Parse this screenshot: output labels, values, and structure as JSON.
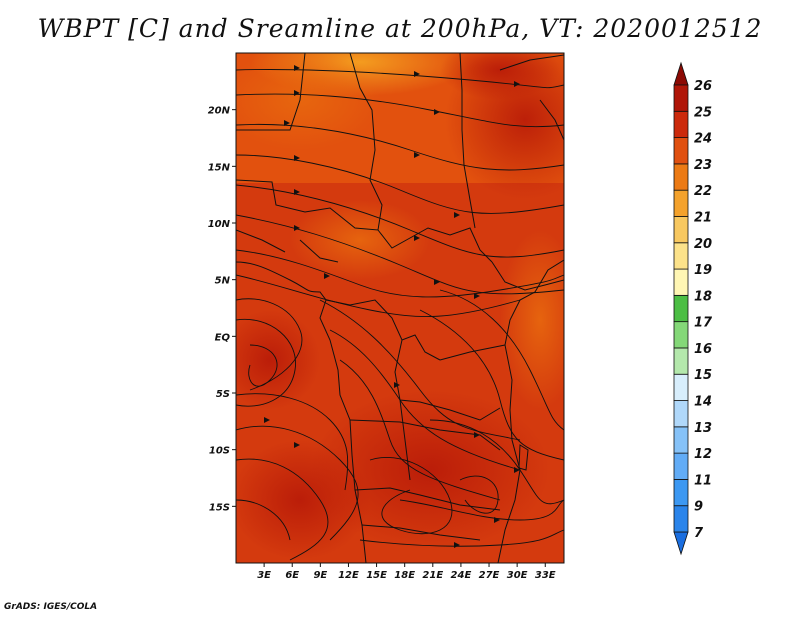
{
  "title": "WBPT [C] and Sreamline at 200hPa, VT: 2020012512",
  "credit": "GrADS: IGES/COLA",
  "map": {
    "lon_range": [
      0,
      35
    ],
    "lat_range": [
      -20,
      25
    ],
    "x_ticks": [
      {
        "value": 3,
        "label": "3E"
      },
      {
        "value": 6,
        "label": "6E"
      },
      {
        "value": 9,
        "label": "9E"
      },
      {
        "value": 12,
        "label": "12E"
      },
      {
        "value": 15,
        "label": "15E"
      },
      {
        "value": 18,
        "label": "18E"
      },
      {
        "value": 21,
        "label": "21E"
      },
      {
        "value": 24,
        "label": "24E"
      },
      {
        "value": 27,
        "label": "27E"
      },
      {
        "value": 30,
        "label": "30E"
      },
      {
        "value": 33,
        "label": "33E"
      }
    ],
    "y_ticks": [
      {
        "value": 20,
        "label": "20N"
      },
      {
        "value": 15,
        "label": "15N"
      },
      {
        "value": 10,
        "label": "10N"
      },
      {
        "value": 5,
        "label": "5N"
      },
      {
        "value": 0,
        "label": "EQ"
      },
      {
        "value": -5,
        "label": "5S"
      },
      {
        "value": -10,
        "label": "10S"
      },
      {
        "value": -15,
        "label": "15S"
      }
    ]
  },
  "colorbar": {
    "labels": [
      "7",
      "9",
      "11",
      "12",
      "13",
      "14",
      "15",
      "16",
      "17",
      "18",
      "19",
      "20",
      "21",
      "22",
      "23",
      "24",
      "25",
      "26"
    ],
    "colors": [
      "#1a6ee0",
      "#2a84ea",
      "#3c98f2",
      "#62acf6",
      "#86c2f8",
      "#b0d8fa",
      "#d8eefc",
      "#b4e8ac",
      "#84d878",
      "#4cbe44",
      "#fff6b4",
      "#fce28a",
      "#f8c860",
      "#f4a22c",
      "#ec7a14",
      "#e05010",
      "#cc2a0c",
      "#b01608",
      "#8c0a04"
    ]
  },
  "colors": {
    "field_base": "#d43a0e",
    "coast": "#111111"
  }
}
